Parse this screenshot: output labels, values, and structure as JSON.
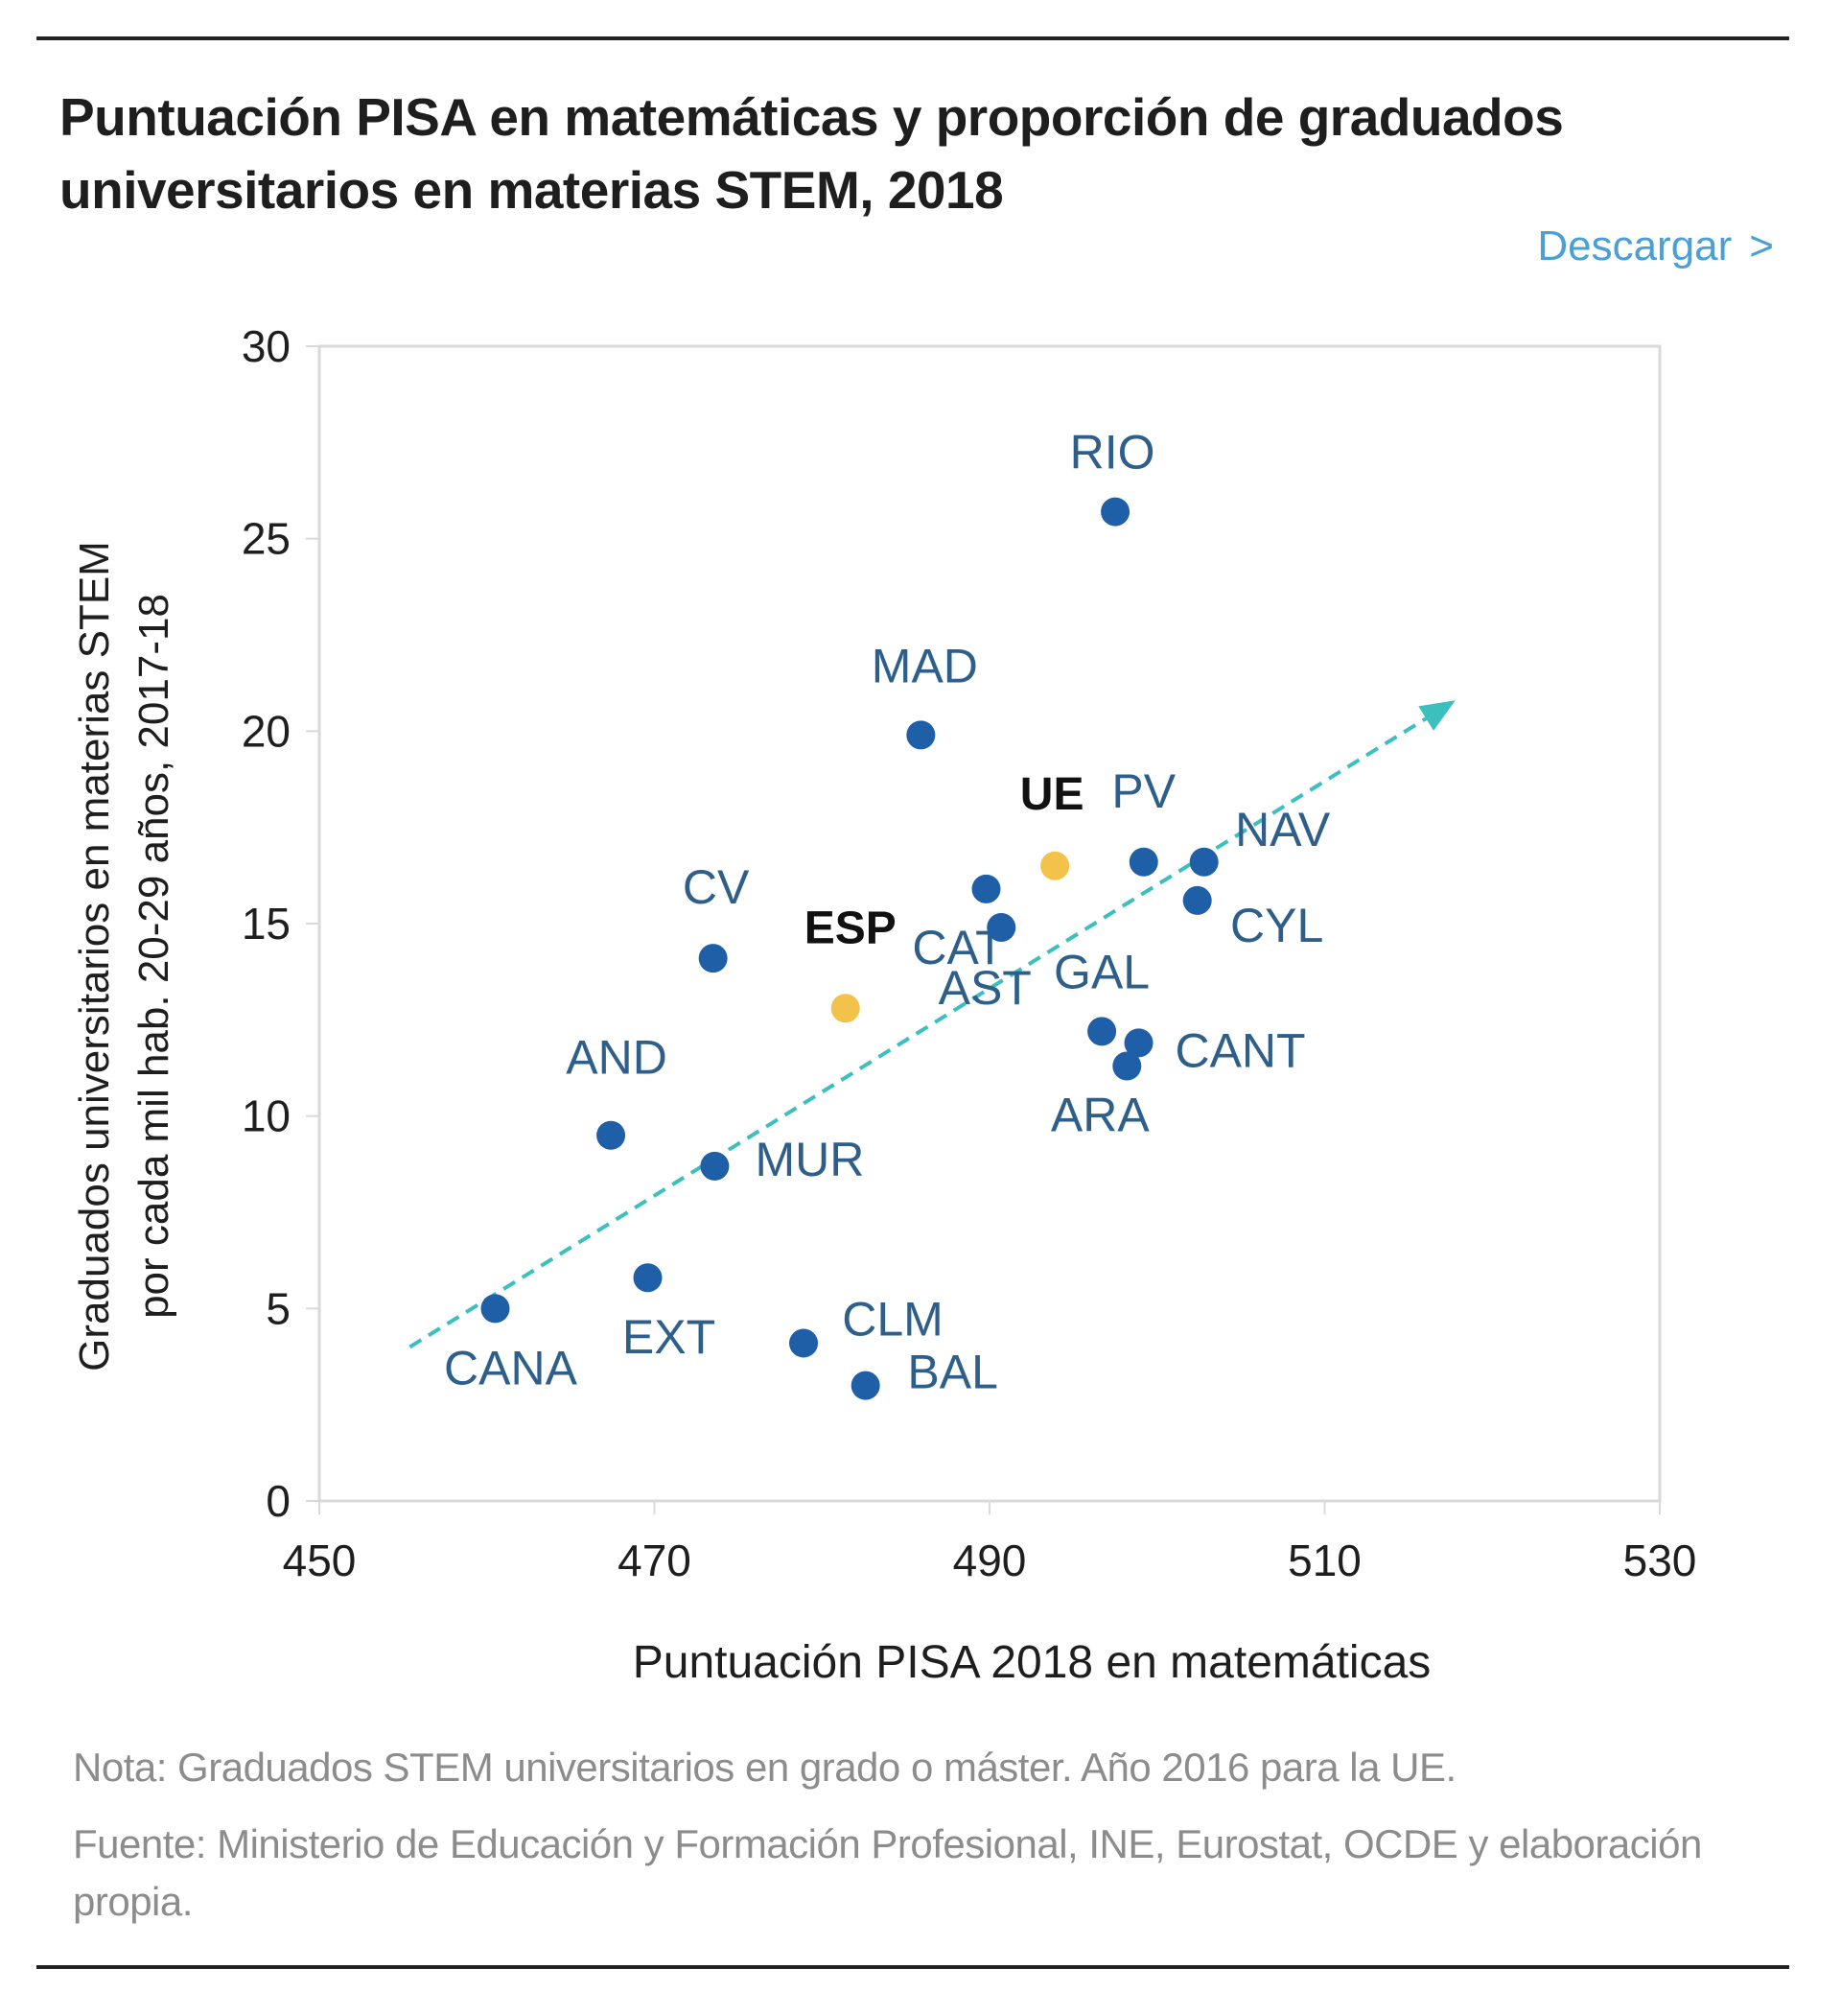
{
  "header": {
    "title": "Puntuación PISA en matemáticas y proporción de graduados universitarios en materias STEM, 2018",
    "download_label": "Descargar",
    "download_icon": "chevron-right-icon",
    "download_chevron": ">"
  },
  "footer": {
    "note": "Nota: Graduados STEM universitarios en grado o máster. Año  2016 para la UE.",
    "source": "Fuente: Ministerio de Educación y Formación Profesional, INE, Eurostat, OCDE y elaboración propia."
  },
  "colors": {
    "region_dot": "#1f5fa8",
    "highlight_dot": "#f2c24a",
    "region_label": "#2e5f8a",
    "highlight_label": "#111111",
    "trend": "#3cbfbf",
    "grid": "#d9d9d9",
    "download_link": "#4aa0d5"
  },
  "chart_data": {
    "type": "scatter",
    "title": "Puntuación PISA en matemáticas y proporción de graduados universitarios en materias STEM, 2018",
    "xlabel": "Puntuación PISA 2018 en matemáticas",
    "ylabel_lines": [
      "Graduados universitarios en materias STEM",
      "por cada mil hab. 20-29 años, 2017-18"
    ],
    "xlim": [
      450,
      530
    ],
    "ylim": [
      0,
      30
    ],
    "xticks": [
      450,
      470,
      490,
      510,
      530
    ],
    "yticks": [
      0,
      5,
      10,
      15,
      20,
      25,
      30
    ],
    "grid": false,
    "legend": "none",
    "points": [
      {
        "label": "RIO",
        "x": 497.5,
        "y": 25.7,
        "group": "region"
      },
      {
        "label": "MAD",
        "x": 485.9,
        "y": 19.9,
        "group": "region"
      },
      {
        "label": "CAT",
        "x": 489.8,
        "y": 15.9,
        "group": "region"
      },
      {
        "label": "UE",
        "x": 493.9,
        "y": 16.5,
        "group": "highlight"
      },
      {
        "label": "PV",
        "x": 499.2,
        "y": 16.6,
        "group": "region"
      },
      {
        "label": "NAV",
        "x": 502.8,
        "y": 16.6,
        "group": "region"
      },
      {
        "label": "CYL",
        "x": 502.4,
        "y": 15.6,
        "group": "region"
      },
      {
        "label": "AST",
        "x": 490.7,
        "y": 14.9,
        "group": "region"
      },
      {
        "label": "CV",
        "x": 473.5,
        "y": 14.1,
        "group": "region"
      },
      {
        "label": "ESP",
        "x": 481.4,
        "y": 12.8,
        "group": "highlight"
      },
      {
        "label": "GAL",
        "x": 496.7,
        "y": 12.2,
        "group": "region"
      },
      {
        "label": "CANT",
        "x": 498.9,
        "y": 11.9,
        "group": "region"
      },
      {
        "label": "ARA",
        "x": 498.2,
        "y": 11.3,
        "group": "region"
      },
      {
        "label": "AND",
        "x": 467.4,
        "y": 9.5,
        "group": "region"
      },
      {
        "label": "MUR",
        "x": 473.6,
        "y": 8.7,
        "group": "region"
      },
      {
        "label": "EXT",
        "x": 469.6,
        "y": 5.8,
        "group": "region"
      },
      {
        "label": "CANA",
        "x": 460.5,
        "y": 5.0,
        "group": "region"
      },
      {
        "label": "CLM",
        "x": 478.9,
        "y": 4.1,
        "group": "region"
      },
      {
        "label": "BAL",
        "x": 482.6,
        "y": 3.0,
        "group": "region"
      }
    ],
    "trend_arrow": {
      "from": {
        "x": 455.4,
        "y": 4.0
      },
      "to": {
        "x": 517.8,
        "y": 20.8
      },
      "style": "dashed"
    }
  }
}
